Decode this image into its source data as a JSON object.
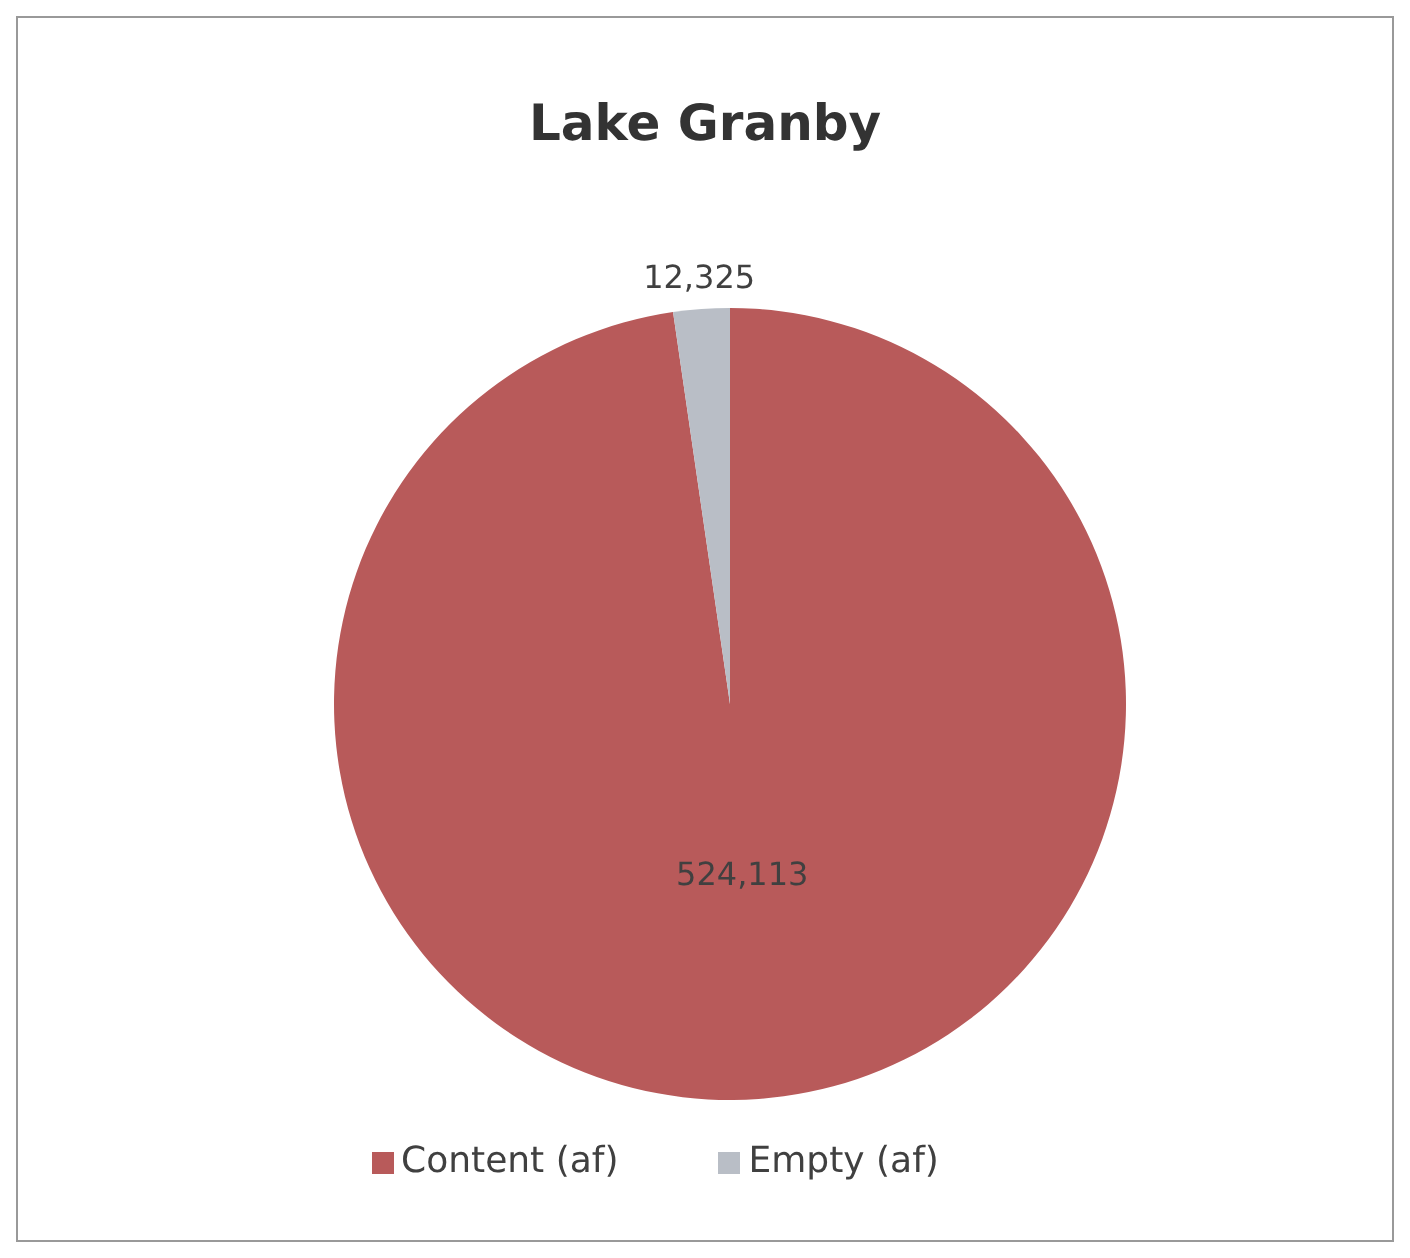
{
  "chart_data": {
    "type": "pie",
    "title": "Lake Granby",
    "categories": [
      "Content (af)",
      "Empty (af)"
    ],
    "values": [
      524113,
      12325
    ],
    "colors": [
      "#b85a5a",
      "#b9bec6"
    ],
    "value_labels": [
      "524,113",
      "12,325"
    ],
    "legend": "bottom"
  }
}
